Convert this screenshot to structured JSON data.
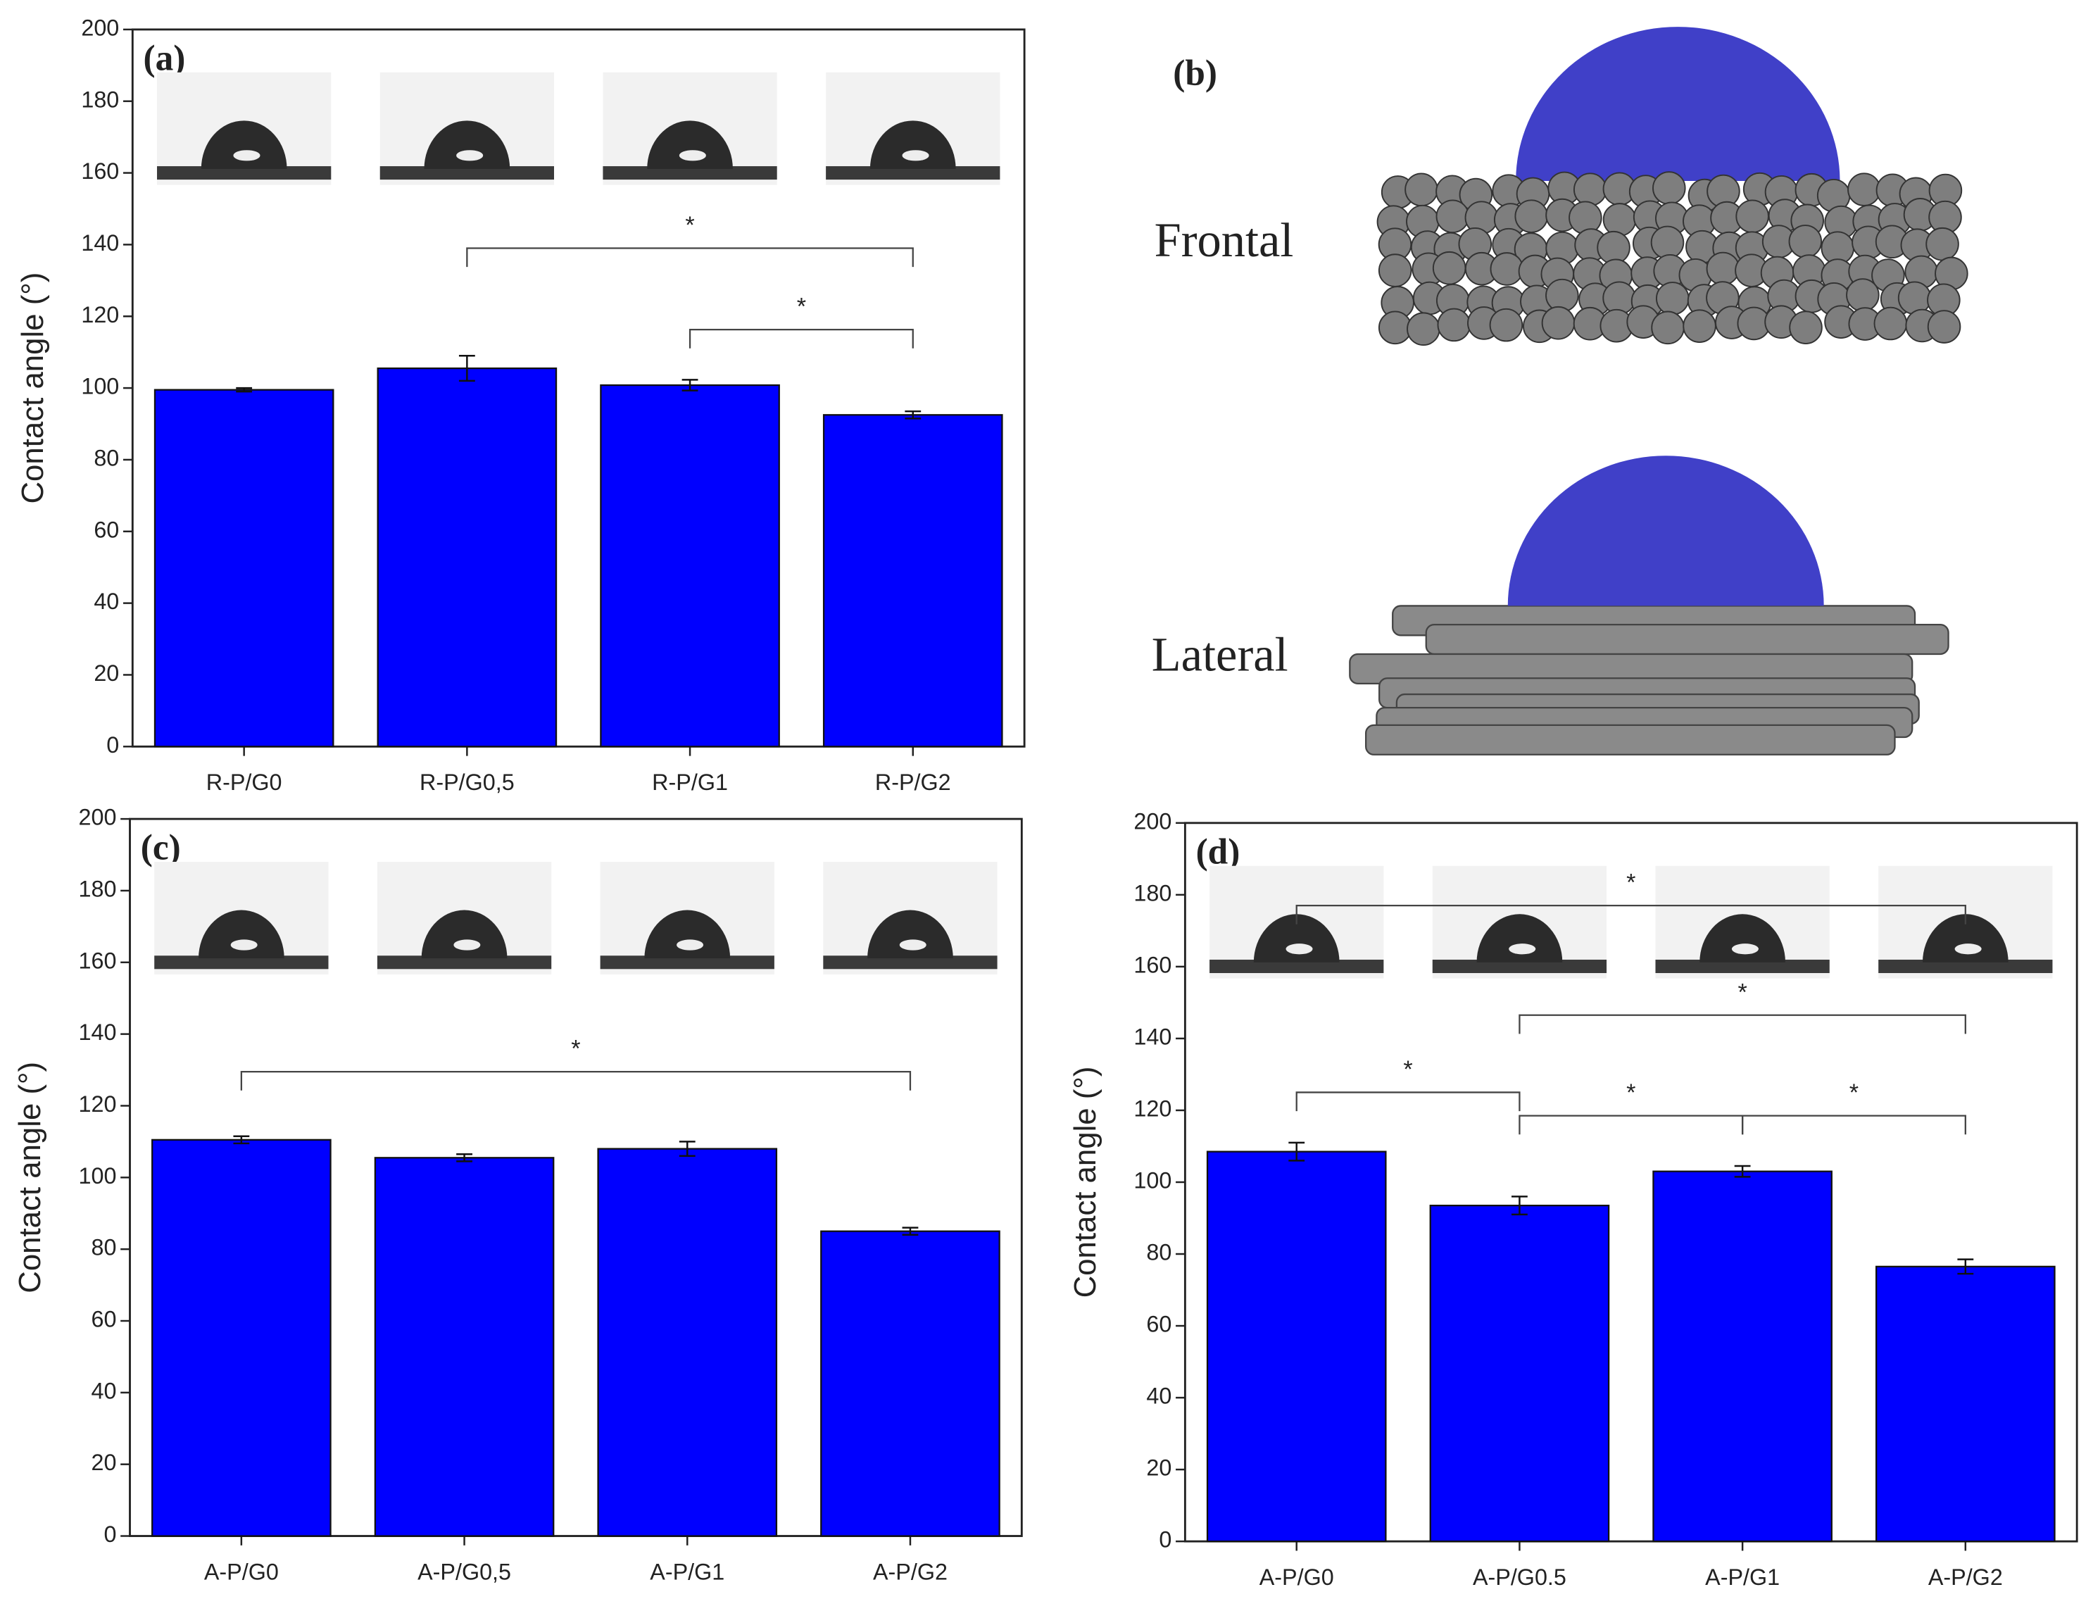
{
  "chart_data": [
    {
      "type": "bar",
      "panel": "(a)",
      "ylabel": "Contact angle (°)",
      "categories": [
        "R-P/G0",
        "R-P/G0,5",
        "R-P/G1",
        "R-P/G2"
      ],
      "values": [
        99.5,
        105.5,
        100.8,
        92.5
      ],
      "errors": [
        0.5,
        3.5,
        1.5,
        1
      ],
      "color": "#0000ff",
      "ylim": [
        0,
        200
      ],
      "yticks": [
        0,
        20,
        40,
        60,
        80,
        100,
        120,
        140,
        160,
        180,
        200
      ],
      "brackets": [
        {
          "from": 1,
          "to": 3,
          "label": "*"
        },
        {
          "from": 2,
          "to": 3,
          "label": "*"
        }
      ]
    },
    {
      "type": "bar",
      "panel": "(c)",
      "ylabel": "Contact angle (°)",
      "categories": [
        "A-P/G0",
        "A-P/G0,5",
        "A-P/G1",
        "A-P/G2"
      ],
      "values": [
        110.5,
        105.5,
        108,
        85
      ],
      "errors": [
        1,
        1,
        2,
        1
      ],
      "color": "#0000ff",
      "ylim": [
        0,
        200
      ],
      "yticks": [
        0,
        20,
        40,
        60,
        80,
        100,
        120,
        140,
        160,
        180,
        200
      ],
      "brackets": [
        {
          "from": 0,
          "to": 3,
          "label": "*"
        }
      ]
    },
    {
      "type": "bar",
      "panel": "(d)",
      "ylabel": "Contact angle (°)",
      "categories": [
        "A-P/G0",
        "A-P/G0.5",
        "A-P/G1",
        "A-P/G2"
      ],
      "values": [
        108.5,
        93.5,
        103,
        76.5
      ],
      "errors": [
        2.5,
        2.5,
        1.5,
        2
      ],
      "color": "#0000ff",
      "ylim": [
        0,
        200
      ],
      "yticks": [
        0,
        20,
        40,
        60,
        80,
        100,
        120,
        140,
        160,
        180,
        200
      ],
      "brackets": [
        {
          "from": 0,
          "to": 3,
          "label": "*"
        },
        {
          "from": 1,
          "to": 3,
          "label": "*"
        },
        {
          "from": 0,
          "to": 1,
          "label": "*"
        },
        {
          "from": 1,
          "to": 2,
          "label": "*"
        },
        {
          "from": 2,
          "to": 3,
          "label": "*"
        }
      ]
    }
  ],
  "diagram": {
    "panel": "(b)",
    "views": [
      "Frontal",
      "Lateral"
    ]
  }
}
